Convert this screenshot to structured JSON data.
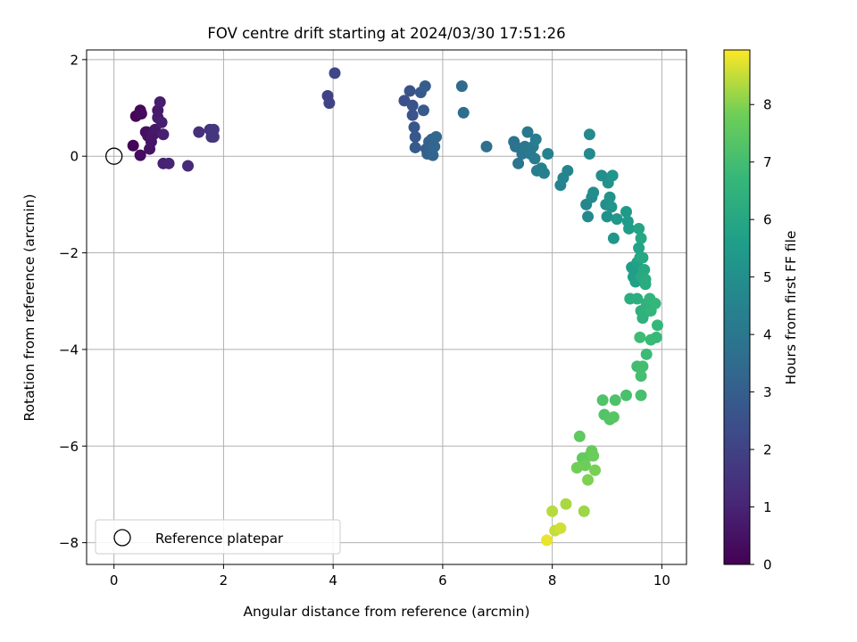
{
  "chart_data": {
    "type": "scatter",
    "title": "FOV centre drift starting at 2024/03/30 17:51:26",
    "xlabel": "Angular distance from reference (arcmin)",
    "ylabel": "Rotation from reference (arcmin)",
    "xlim": [
      -0.5,
      10.45
    ],
    "ylim": [
      -8.45,
      2.2
    ],
    "xticks": [
      0,
      2,
      4,
      6,
      8,
      10
    ],
    "xtick_labels": [
      "0",
      "2",
      "4",
      "6",
      "8",
      "10"
    ],
    "yticks": [
      -8,
      -6,
      -4,
      -2,
      0,
      2
    ],
    "ytick_labels": [
      "−8",
      "−6",
      "−4",
      "−2",
      "0",
      "2"
    ],
    "grid": true,
    "colorbar": {
      "label": "Hours from first FF file",
      "colormap": "viridis",
      "range": [
        0,
        8.95
      ],
      "ticks": [
        0,
        1,
        2,
        3,
        4,
        5,
        6,
        7,
        8
      ],
      "tick_labels": [
        "0",
        "1",
        "2",
        "3",
        "4",
        "5",
        "6",
        "7",
        "8"
      ]
    },
    "legend": {
      "position": "lower-left",
      "entries": [
        "Reference platepar"
      ]
    },
    "reference_point": {
      "x": 0,
      "y": 0,
      "label": "Reference platepar"
    },
    "series": [
      {
        "color_by": "hours",
        "points": [
          [
            0.35,
            0.22,
            0.1
          ],
          [
            0.4,
            0.83,
            0.15
          ],
          [
            0.48,
            0.95,
            0.2
          ],
          [
            0.5,
            0.88,
            0.25
          ],
          [
            0.48,
            0.02,
            0.3
          ],
          [
            0.58,
            0.5,
            0.35
          ],
          [
            0.6,
            0.5,
            0.4
          ],
          [
            0.62,
            0.42,
            0.45
          ],
          [
            0.65,
            0.15,
            0.5
          ],
          [
            0.68,
            0.3,
            0.55
          ],
          [
            0.72,
            0.45,
            0.6
          ],
          [
            0.75,
            0.55,
            0.65
          ],
          [
            0.8,
            0.95,
            0.7
          ],
          [
            0.8,
            0.8,
            0.75
          ],
          [
            0.84,
            1.12,
            0.8
          ],
          [
            0.87,
            0.7,
            0.85
          ],
          [
            0.9,
            0.45,
            0.9
          ],
          [
            0.9,
            -0.15,
            0.95
          ],
          [
            1.0,
            -0.15,
            1.0
          ],
          [
            1.35,
            -0.2,
            1.2
          ],
          [
            1.55,
            0.5,
            1.4
          ],
          [
            1.75,
            0.55,
            1.5
          ],
          [
            1.78,
            0.4,
            1.55
          ],
          [
            1.82,
            0.4,
            1.6
          ],
          [
            1.82,
            0.55,
            1.65
          ],
          [
            3.9,
            1.25,
            2.0
          ],
          [
            3.93,
            1.1,
            2.05
          ],
          [
            4.03,
            1.72,
            2.1
          ],
          [
            5.3,
            1.15,
            2.5
          ],
          [
            5.4,
            1.35,
            2.55
          ],
          [
            5.45,
            1.05,
            2.6
          ],
          [
            5.45,
            0.85,
            2.65
          ],
          [
            5.48,
            0.6,
            2.7
          ],
          [
            5.5,
            0.4,
            2.75
          ],
          [
            5.5,
            0.18,
            2.8
          ],
          [
            5.6,
            1.32,
            2.85
          ],
          [
            5.65,
            0.95,
            2.9
          ],
          [
            5.68,
            1.45,
            2.95
          ],
          [
            5.7,
            0.15,
            3.0
          ],
          [
            5.72,
            0.05,
            3.05
          ],
          [
            5.75,
            0.3,
            3.1
          ],
          [
            5.78,
            0.18,
            3.15
          ],
          [
            5.8,
            0.35,
            3.2
          ],
          [
            5.82,
            0.02,
            3.25
          ],
          [
            5.85,
            0.2,
            3.3
          ],
          [
            5.88,
            0.4,
            3.35
          ],
          [
            6.35,
            1.45,
            3.5
          ],
          [
            6.38,
            0.9,
            3.55
          ],
          [
            6.8,
            0.2,
            3.7
          ],
          [
            7.3,
            0.3,
            3.8
          ],
          [
            7.33,
            0.2,
            3.85
          ],
          [
            7.38,
            -0.15,
            3.9
          ],
          [
            7.45,
            0.05,
            3.95
          ],
          [
            7.5,
            0.2,
            4.0
          ],
          [
            7.55,
            0.5,
            4.05
          ],
          [
            7.6,
            0.05,
            4.1
          ],
          [
            7.65,
            0.2,
            4.15
          ],
          [
            7.68,
            -0.05,
            4.2
          ],
          [
            7.7,
            0.35,
            4.25
          ],
          [
            7.72,
            -0.3,
            4.3
          ],
          [
            7.8,
            -0.25,
            4.35
          ],
          [
            7.85,
            -0.35,
            4.4
          ],
          [
            7.92,
            0.05,
            4.45
          ],
          [
            8.15,
            -0.6,
            4.5
          ],
          [
            8.2,
            -0.45,
            4.55
          ],
          [
            8.28,
            -0.3,
            4.6
          ],
          [
            8.62,
            -1.0,
            4.65
          ],
          [
            8.65,
            -1.25,
            4.7
          ],
          [
            8.68,
            0.05,
            4.75
          ],
          [
            8.68,
            0.45,
            4.8
          ],
          [
            8.72,
            -0.85,
            4.85
          ],
          [
            8.75,
            -0.75,
            4.9
          ],
          [
            8.9,
            -0.4,
            4.95
          ],
          [
            8.98,
            -1.0,
            5.0
          ],
          [
            9.0,
            -1.25,
            5.05
          ],
          [
            9.02,
            -0.55,
            5.1
          ],
          [
            9.05,
            -0.85,
            5.15
          ],
          [
            9.08,
            -1.05,
            5.2
          ],
          [
            9.1,
            -0.4,
            5.25
          ],
          [
            9.12,
            -1.7,
            5.3
          ],
          [
            9.18,
            -1.3,
            5.35
          ],
          [
            9.35,
            -1.15,
            5.4
          ],
          [
            9.38,
            -1.35,
            5.45
          ],
          [
            9.4,
            -1.5,
            5.5
          ],
          [
            9.45,
            -2.3,
            5.55
          ],
          [
            9.48,
            -2.5,
            5.6
          ],
          [
            9.5,
            -2.4,
            5.65
          ],
          [
            9.52,
            -2.6,
            5.7
          ],
          [
            9.55,
            -2.2,
            5.75
          ],
          [
            9.58,
            -1.9,
            5.8
          ],
          [
            9.58,
            -1.5,
            5.85
          ],
          [
            9.6,
            -2.1,
            5.9
          ],
          [
            9.62,
            -1.7,
            5.95
          ],
          [
            9.62,
            -2.5,
            6.0
          ],
          [
            9.65,
            -2.1,
            6.05
          ],
          [
            9.68,
            -2.35,
            6.1
          ],
          [
            9.7,
            -2.65,
            6.15
          ],
          [
            9.7,
            -2.55,
            6.2
          ],
          [
            9.42,
            -2.95,
            6.25
          ],
          [
            9.55,
            -2.95,
            6.3
          ],
          [
            9.62,
            -3.2,
            6.35
          ],
          [
            9.65,
            -3.35,
            6.4
          ],
          [
            9.68,
            -3.25,
            6.45
          ],
          [
            9.72,
            -3.05,
            6.5
          ],
          [
            9.78,
            -2.95,
            6.55
          ],
          [
            9.8,
            -3.2,
            6.6
          ],
          [
            9.88,
            -3.05,
            6.65
          ],
          [
            9.92,
            -3.5,
            6.7
          ],
          [
            9.9,
            -3.75,
            6.75
          ],
          [
            9.8,
            -3.8,
            6.8
          ],
          [
            9.72,
            -4.1,
            6.85
          ],
          [
            9.6,
            -3.75,
            6.9
          ],
          [
            9.55,
            -4.35,
            6.95
          ],
          [
            9.65,
            -4.35,
            7.0
          ],
          [
            9.62,
            -4.55,
            7.05
          ],
          [
            9.62,
            -4.95,
            7.1
          ],
          [
            9.35,
            -4.95,
            7.15
          ],
          [
            9.15,
            -5.05,
            7.2
          ],
          [
            8.92,
            -5.05,
            7.25
          ],
          [
            8.95,
            -5.35,
            7.3
          ],
          [
            9.05,
            -5.45,
            7.35
          ],
          [
            9.12,
            -5.4,
            7.4
          ],
          [
            8.5,
            -5.8,
            7.55
          ],
          [
            8.55,
            -6.25,
            7.6
          ],
          [
            8.68,
            -6.2,
            7.65
          ],
          [
            8.72,
            -6.1,
            7.7
          ],
          [
            8.75,
            -6.2,
            7.75
          ],
          [
            8.6,
            -6.4,
            7.8
          ],
          [
            8.45,
            -6.45,
            7.85
          ],
          [
            8.78,
            -6.5,
            7.9
          ],
          [
            8.65,
            -6.7,
            7.95
          ],
          [
            8.58,
            -7.35,
            8.2
          ],
          [
            8.25,
            -7.2,
            8.3
          ],
          [
            8.0,
            -7.35,
            8.4
          ],
          [
            8.05,
            -7.75,
            8.5
          ],
          [
            8.15,
            -7.7,
            8.6
          ],
          [
            7.9,
            -7.95,
            8.8
          ]
        ]
      }
    ]
  },
  "colors": {
    "axis": "#000000",
    "grid": "#b0b0b0",
    "legend_border": "#cccccc"
  }
}
